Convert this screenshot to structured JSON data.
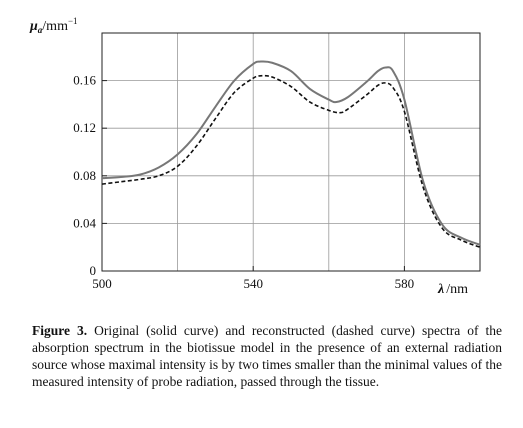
{
  "chart_data": {
    "type": "line",
    "xlabel_symbol": "λ",
    "xlabel_unit": "/nm",
    "ylabel_symbol": "μ",
    "ylabel_subscript": "a",
    "ylabel_unit": "/mm",
    "ylabel_unit_exp": "−1",
    "xlim": [
      500,
      600
    ],
    "ylim": [
      0,
      0.2
    ],
    "x_ticks": [
      500,
      540,
      580
    ],
    "x_tick_labels": [
      "500",
      "540",
      "580"
    ],
    "y_ticks": [
      0,
      0.04,
      0.08,
      0.12,
      0.16
    ],
    "y_tick_labels": [
      "0",
      "0.04",
      "0.08",
      "0.12",
      "0.16"
    ],
    "grid": true,
    "series": [
      {
        "style": "solid",
        "color": "#777777",
        "x": [
          500,
          505,
          510,
          515,
          520,
          525,
          530,
          535,
          540,
          542,
          545,
          550,
          555,
          560,
          562,
          565,
          570,
          573,
          575,
          577,
          580,
          585,
          590,
          595,
          600
        ],
        "y": [
          0.078,
          0.079,
          0.081,
          0.087,
          0.098,
          0.115,
          0.138,
          0.16,
          0.174,
          0.176,
          0.175,
          0.168,
          0.153,
          0.144,
          0.142,
          0.146,
          0.159,
          0.168,
          0.171,
          0.168,
          0.144,
          0.075,
          0.039,
          0.028,
          0.022
        ]
      },
      {
        "style": "dashed",
        "color": "#111111",
        "x": [
          500,
          505,
          510,
          515,
          520,
          525,
          530,
          535,
          540,
          542,
          545,
          550,
          555,
          560,
          563,
          565,
          570,
          573,
          575,
          577,
          580,
          585,
          590,
          595,
          600
        ],
        "y": [
          0.073,
          0.075,
          0.077,
          0.08,
          0.088,
          0.105,
          0.128,
          0.15,
          0.162,
          0.164,
          0.163,
          0.155,
          0.142,
          0.135,
          0.133,
          0.136,
          0.148,
          0.156,
          0.158,
          0.154,
          0.134,
          0.07,
          0.036,
          0.026,
          0.02
        ]
      }
    ]
  },
  "caption": {
    "label": "Figure 3.",
    "text": "Original (solid curve) and reconstructed (dashed curve) spectra of the absorption spectrum in the biotissue model in the presence of an external radiation source whose maximal intensity is by two times smaller than the minimal values of the measured intensity of probe radiation, passed through the tissue."
  }
}
